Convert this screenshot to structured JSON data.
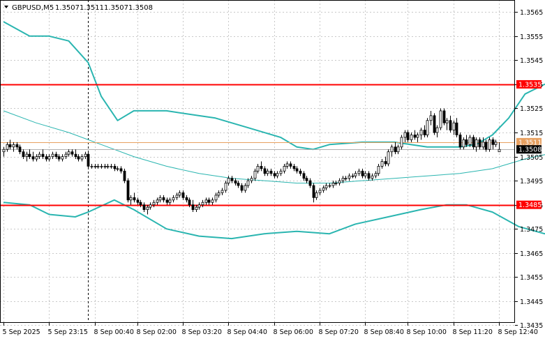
{
  "header": {
    "symbol": "GBPUSD,M5",
    "open": "1.3507",
    "high": "1.3511",
    "low": "1.3507",
    "close": "1.3508",
    "menu_icon": "triangle-down-icon"
  },
  "colors": {
    "background": "#ffffff",
    "candle": "#000000",
    "bands": "#2ab5b0",
    "ma": "#2ab5b0",
    "level_line": "#ff0000",
    "price_line": "#e8a060",
    "price_label_bg": "#000000",
    "level_label_bg": "#ff0000",
    "grid": "#c8c8c8"
  },
  "chart_data": {
    "type": "candlestick",
    "grid": true,
    "ylim": [
      1.3436,
      1.357
    ],
    "y_ticks": [
      "1.3565",
      "1.3555",
      "1.3545",
      "1.3535",
      "1.3525",
      "1.3515",
      "1.3505",
      "1.3495",
      "1.3485",
      "1.3475",
      "1.3465",
      "1.3455",
      "1.3445",
      "1.3435"
    ],
    "x_ticks": [
      "5 Sep 2025",
      "5 Sep 23:15",
      "8 Sep 00:40",
      "8 Sep 02:00",
      "8 Sep 03:20",
      "8 Sep 04:40",
      "8 Sep 06:00",
      "8 Sep 07:20",
      "8 Sep 08:40",
      "8 Sep 10:00",
      "8 Sep 11:20",
      "8 Sep 12:40"
    ],
    "levels": [
      {
        "label": "1.3535",
        "value": 1.3535
      },
      {
        "label": "1.3485",
        "value": 1.3485
      }
    ],
    "price_labels": [
      {
        "label": "1.3511",
        "value": 1.3511
      },
      {
        "label": "1.3508",
        "value": 1.3508
      }
    ],
    "period_separator_index": 26,
    "candles": [
      [
        1.3507,
        1.3509,
        1.3505,
        1.3508
      ],
      [
        1.3508,
        1.3511,
        1.3507,
        1.351
      ],
      [
        1.351,
        1.3512,
        1.3508,
        1.3509
      ],
      [
        1.3509,
        1.3511,
        1.3507,
        1.351
      ],
      [
        1.351,
        1.3511,
        1.3508,
        1.3509
      ],
      [
        1.3509,
        1.351,
        1.3506,
        1.3507
      ],
      [
        1.3507,
        1.3508,
        1.3504,
        1.3505
      ],
      [
        1.3505,
        1.3507,
        1.3503,
        1.3506
      ],
      [
        1.3506,
        1.3508,
        1.3504,
        1.3505
      ],
      [
        1.3505,
        1.3507,
        1.3503,
        1.3504
      ],
      [
        1.3504,
        1.3506,
        1.3503,
        1.3505
      ],
      [
        1.3505,
        1.3507,
        1.3504,
        1.3506
      ],
      [
        1.3506,
        1.3508,
        1.3504,
        1.3505
      ],
      [
        1.3505,
        1.3506,
        1.3503,
        1.3504
      ],
      [
        1.3504,
        1.3506,
        1.3503,
        1.3505
      ],
      [
        1.3505,
        1.3507,
        1.3504,
        1.3506
      ],
      [
        1.3506,
        1.3507,
        1.3504,
        1.3505
      ],
      [
        1.3505,
        1.3506,
        1.3503,
        1.3504
      ],
      [
        1.3504,
        1.3506,
        1.3503,
        1.3505
      ],
      [
        1.3505,
        1.3507,
        1.3504,
        1.3506
      ],
      [
        1.3506,
        1.3508,
        1.3505,
        1.3507
      ],
      [
        1.3507,
        1.3508,
        1.3505,
        1.3506
      ],
      [
        1.3506,
        1.3508,
        1.3504,
        1.3505
      ],
      [
        1.3505,
        1.3506,
        1.3503,
        1.3504
      ],
      [
        1.3504,
        1.3506,
        1.3503,
        1.3505
      ],
      [
        1.3505,
        1.3507,
        1.3504,
        1.3506
      ],
      [
        1.3506,
        1.3507,
        1.35,
        1.3501
      ],
      [
        1.3501,
        1.3502,
        1.35,
        1.3501
      ],
      [
        1.3501,
        1.3502,
        1.35,
        1.3501
      ],
      [
        1.3501,
        1.3502,
        1.35,
        1.3501
      ],
      [
        1.3501,
        1.3502,
        1.35,
        1.3501
      ],
      [
        1.3501,
        1.3502,
        1.35,
        1.3501
      ],
      [
        1.3501,
        1.3502,
        1.35,
        1.3501
      ],
      [
        1.3501,
        1.3502,
        1.35,
        1.3501
      ],
      [
        1.3501,
        1.3502,
        1.3499,
        1.35
      ],
      [
        1.35,
        1.3501,
        1.3499,
        1.35
      ],
      [
        1.35,
        1.3501,
        1.3498,
        1.3499
      ],
      [
        1.3499,
        1.35,
        1.3494,
        1.3495
      ],
      [
        1.3495,
        1.3496,
        1.3486,
        1.3487
      ],
      [
        1.3487,
        1.3489,
        1.3485,
        1.3488
      ],
      [
        1.3488,
        1.349,
        1.3486,
        1.3487
      ],
      [
        1.3487,
        1.3488,
        1.3485,
        1.3486
      ],
      [
        1.3486,
        1.3487,
        1.3484,
        1.3485
      ],
      [
        1.3485,
        1.3486,
        1.3482,
        1.3483
      ],
      [
        1.3483,
        1.3485,
        1.3481,
        1.3484
      ],
      [
        1.3484,
        1.3486,
        1.3483,
        1.3485
      ],
      [
        1.3485,
        1.3487,
        1.3484,
        1.3486
      ],
      [
        1.3486,
        1.3488,
        1.3485,
        1.3487
      ],
      [
        1.3487,
        1.3489,
        1.3486,
        1.3488
      ],
      [
        1.3488,
        1.3489,
        1.3486,
        1.3487
      ],
      [
        1.3487,
        1.3488,
        1.3485,
        1.3486
      ],
      [
        1.3486,
        1.3488,
        1.3485,
        1.3487
      ],
      [
        1.3487,
        1.3489,
        1.3486,
        1.3488
      ],
      [
        1.3488,
        1.349,
        1.3487,
        1.3489
      ],
      [
        1.3489,
        1.3491,
        1.3488,
        1.349
      ],
      [
        1.349,
        1.3491,
        1.3487,
        1.3488
      ],
      [
        1.3488,
        1.3489,
        1.3486,
        1.3487
      ],
      [
        1.3487,
        1.3488,
        1.3484,
        1.3485
      ],
      [
        1.3485,
        1.3487,
        1.3482,
        1.3483
      ],
      [
        1.3483,
        1.3485,
        1.3482,
        1.3484
      ],
      [
        1.3484,
        1.3486,
        1.3483,
        1.3485
      ],
      [
        1.3485,
        1.3487,
        1.3484,
        1.3486
      ],
      [
        1.3486,
        1.3488,
        1.3485,
        1.3487
      ],
      [
        1.3487,
        1.3488,
        1.3485,
        1.3486
      ],
      [
        1.3486,
        1.3488,
        1.3485,
        1.3487
      ],
      [
        1.3487,
        1.349,
        1.3486,
        1.3489
      ],
      [
        1.3489,
        1.3491,
        1.3488,
        1.349
      ],
      [
        1.349,
        1.3492,
        1.3489,
        1.3491
      ],
      [
        1.3491,
        1.3495,
        1.349,
        1.3494
      ],
      [
        1.3494,
        1.3497,
        1.3493,
        1.3496
      ],
      [
        1.3496,
        1.3497,
        1.3494,
        1.3495
      ],
      [
        1.3495,
        1.3496,
        1.3493,
        1.3494
      ],
      [
        1.3494,
        1.3495,
        1.3492,
        1.3493
      ],
      [
        1.3493,
        1.3494,
        1.349,
        1.3491
      ],
      [
        1.3491,
        1.3494,
        1.349,
        1.3493
      ],
      [
        1.3493,
        1.3496,
        1.3492,
        1.3495
      ],
      [
        1.3495,
        1.3497,
        1.3494,
        1.3496
      ],
      [
        1.3496,
        1.35,
        1.3495,
        1.3499
      ],
      [
        1.3499,
        1.3502,
        1.3498,
        1.3501
      ],
      [
        1.3501,
        1.3503,
        1.3499,
        1.35
      ],
      [
        1.35,
        1.3501,
        1.3497,
        1.3498
      ],
      [
        1.3498,
        1.35,
        1.3497,
        1.3499
      ],
      [
        1.3499,
        1.35,
        1.3497,
        1.3498
      ],
      [
        1.3498,
        1.3499,
        1.3496,
        1.3497
      ],
      [
        1.3497,
        1.3499,
        1.3496,
        1.3498
      ],
      [
        1.3498,
        1.35,
        1.3497,
        1.3499
      ],
      [
        1.3499,
        1.3502,
        1.3498,
        1.3501
      ],
      [
        1.3501,
        1.3503,
        1.35,
        1.3502
      ],
      [
        1.3502,
        1.3503,
        1.35,
        1.3501
      ],
      [
        1.3501,
        1.3502,
        1.3499,
        1.35
      ],
      [
        1.35,
        1.3501,
        1.3498,
        1.3499
      ],
      [
        1.3499,
        1.35,
        1.3497,
        1.3498
      ],
      [
        1.3498,
        1.3499,
        1.3495,
        1.3496
      ],
      [
        1.3496,
        1.3497,
        1.3494,
        1.3495
      ],
      [
        1.3495,
        1.3496,
        1.3492,
        1.3493
      ],
      [
        1.3493,
        1.3494,
        1.3486,
        1.3488
      ],
      [
        1.3488,
        1.3491,
        1.3487,
        1.349
      ],
      [
        1.349,
        1.3492,
        1.3489,
        1.3491
      ],
      [
        1.3491,
        1.3493,
        1.349,
        1.3492
      ],
      [
        1.3492,
        1.3494,
        1.3491,
        1.3493
      ],
      [
        1.3493,
        1.3494,
        1.3492,
        1.3493
      ],
      [
        1.3493,
        1.3495,
        1.3492,
        1.3494
      ],
      [
        1.3494,
        1.3495,
        1.3493,
        1.3494
      ],
      [
        1.3494,
        1.3496,
        1.3493,
        1.3495
      ],
      [
        1.3495,
        1.3497,
        1.3494,
        1.3496
      ],
      [
        1.3496,
        1.3497,
        1.3495,
        1.3496
      ],
      [
        1.3496,
        1.3498,
        1.3495,
        1.3497
      ],
      [
        1.3497,
        1.3498,
        1.3496,
        1.3497
      ],
      [
        1.3497,
        1.3499,
        1.3496,
        1.3498
      ],
      [
        1.3498,
        1.35,
        1.3497,
        1.3499
      ],
      [
        1.3499,
        1.35,
        1.3496,
        1.3497
      ],
      [
        1.3497,
        1.3499,
        1.3496,
        1.3498
      ],
      [
        1.3498,
        1.3499,
        1.3495,
        1.3496
      ],
      [
        1.3496,
        1.3498,
        1.3495,
        1.3497
      ],
      [
        1.3497,
        1.3499,
        1.3496,
        1.3498
      ],
      [
        1.3498,
        1.3502,
        1.3497,
        1.3501
      ],
      [
        1.3501,
        1.3504,
        1.35,
        1.3503
      ],
      [
        1.3503,
        1.3505,
        1.3501,
        1.3502
      ],
      [
        1.3502,
        1.3508,
        1.3501,
        1.3507
      ],
      [
        1.3507,
        1.351,
        1.3505,
        1.3509
      ],
      [
        1.3509,
        1.3511,
        1.3506,
        1.3507
      ],
      [
        1.3507,
        1.351,
        1.3506,
        1.3509
      ],
      [
        1.3509,
        1.3514,
        1.3508,
        1.3513
      ],
      [
        1.3513,
        1.3516,
        1.3511,
        1.3515
      ],
      [
        1.3515,
        1.3516,
        1.3511,
        1.3512
      ],
      [
        1.3512,
        1.3515,
        1.3511,
        1.3514
      ],
      [
        1.3514,
        1.3516,
        1.3512,
        1.3513
      ],
      [
        1.3513,
        1.3515,
        1.3511,
        1.3514
      ],
      [
        1.3514,
        1.3517,
        1.3512,
        1.3516
      ],
      [
        1.3516,
        1.3518,
        1.3513,
        1.3514
      ],
      [
        1.3514,
        1.3521,
        1.3513,
        1.352
      ],
      [
        1.352,
        1.3524,
        1.3518,
        1.3522
      ],
      [
        1.3522,
        1.3523,
        1.3514,
        1.3515
      ],
      [
        1.3515,
        1.3518,
        1.3513,
        1.3517
      ],
      [
        1.3517,
        1.3525,
        1.3516,
        1.3524
      ],
      [
        1.3524,
        1.3525,
        1.3518,
        1.3519
      ],
      [
        1.3519,
        1.3521,
        1.3516,
        1.352
      ],
      [
        1.352,
        1.3522,
        1.3515,
        1.3516
      ],
      [
        1.3516,
        1.352,
        1.3514,
        1.3519
      ],
      [
        1.3519,
        1.3521,
        1.3513,
        1.3514
      ],
      [
        1.3514,
        1.3515,
        1.3508,
        1.3509
      ],
      [
        1.3509,
        1.3513,
        1.3508,
        1.3512
      ],
      [
        1.3512,
        1.3514,
        1.3509,
        1.351
      ],
      [
        1.351,
        1.3514,
        1.3509,
        1.3513
      ],
      [
        1.3513,
        1.3514,
        1.3508,
        1.3509
      ],
      [
        1.3509,
        1.3513,
        1.3507,
        1.3512
      ],
      [
        1.3512,
        1.3513,
        1.3508,
        1.3509
      ],
      [
        1.3509,
        1.3513,
        1.3508,
        1.3511
      ],
      [
        1.3511,
        1.3512,
        1.3507,
        1.3508
      ],
      [
        1.3508,
        1.3513,
        1.3507,
        1.3512
      ],
      [
        1.3512,
        1.3513,
        1.3508,
        1.351
      ],
      [
        1.351,
        1.3512,
        1.3509,
        1.3511
      ],
      [
        1.3507,
        1.3511,
        1.3507,
        1.3508
      ]
    ],
    "upper_band": [
      [
        0,
        1.3561
      ],
      [
        8,
        1.3555
      ],
      [
        14,
        1.3555
      ],
      [
        20,
        1.3553
      ],
      [
        26,
        1.3544
      ],
      [
        30,
        1.353
      ],
      [
        35,
        1.352
      ],
      [
        40,
        1.3524
      ],
      [
        50,
        1.3524
      ],
      [
        60,
        1.3522
      ],
      [
        65,
        1.3521
      ],
      [
        75,
        1.3517
      ],
      [
        85,
        1.3513
      ],
      [
        90,
        1.3509
      ],
      [
        95,
        1.3508
      ],
      [
        100,
        1.351
      ],
      [
        110,
        1.3511
      ],
      [
        120,
        1.3511
      ],
      [
        130,
        1.3509
      ],
      [
        140,
        1.3509
      ],
      [
        145,
        1.351
      ],
      [
        150,
        1.3514
      ],
      [
        155,
        1.3521
      ],
      [
        160,
        1.3531
      ],
      [
        166,
        1.3535
      ],
      [
        172,
        1.3535
      ],
      [
        180,
        1.3533
      ],
      [
        184,
        1.3532
      ]
    ],
    "middle_ma": [
      [
        0,
        1.3524
      ],
      [
        10,
        1.3519
      ],
      [
        20,
        1.3515
      ],
      [
        30,
        1.351
      ],
      [
        40,
        1.3505
      ],
      [
        50,
        1.3501
      ],
      [
        60,
        1.3498
      ],
      [
        70,
        1.3496
      ],
      [
        80,
        1.3495
      ],
      [
        90,
        1.3494
      ],
      [
        100,
        1.3494
      ],
      [
        110,
        1.3495
      ],
      [
        120,
        1.3496
      ],
      [
        130,
        1.3497
      ],
      [
        140,
        1.3498
      ],
      [
        150,
        1.35
      ],
      [
        160,
        1.3504
      ],
      [
        170,
        1.3507
      ],
      [
        180,
        1.3508
      ],
      [
        184,
        1.3509
      ]
    ],
    "lower_band": [
      [
        0,
        1.3486
      ],
      [
        8,
        1.3485
      ],
      [
        14,
        1.3481
      ],
      [
        22,
        1.348
      ],
      [
        26,
        1.3482
      ],
      [
        34,
        1.3487
      ],
      [
        40,
        1.3483
      ],
      [
        50,
        1.3475
      ],
      [
        60,
        1.3472
      ],
      [
        70,
        1.3471
      ],
      [
        80,
        1.3473
      ],
      [
        90,
        1.3474
      ],
      [
        100,
        1.3473
      ],
      [
        108,
        1.3477
      ],
      [
        118,
        1.348
      ],
      [
        128,
        1.3483
      ],
      [
        136,
        1.3485
      ],
      [
        142,
        1.3485
      ],
      [
        150,
        1.3482
      ],
      [
        158,
        1.3476
      ],
      [
        166,
        1.3473
      ],
      [
        172,
        1.3475
      ],
      [
        180,
        1.348
      ],
      [
        184,
        1.3484
      ]
    ]
  }
}
